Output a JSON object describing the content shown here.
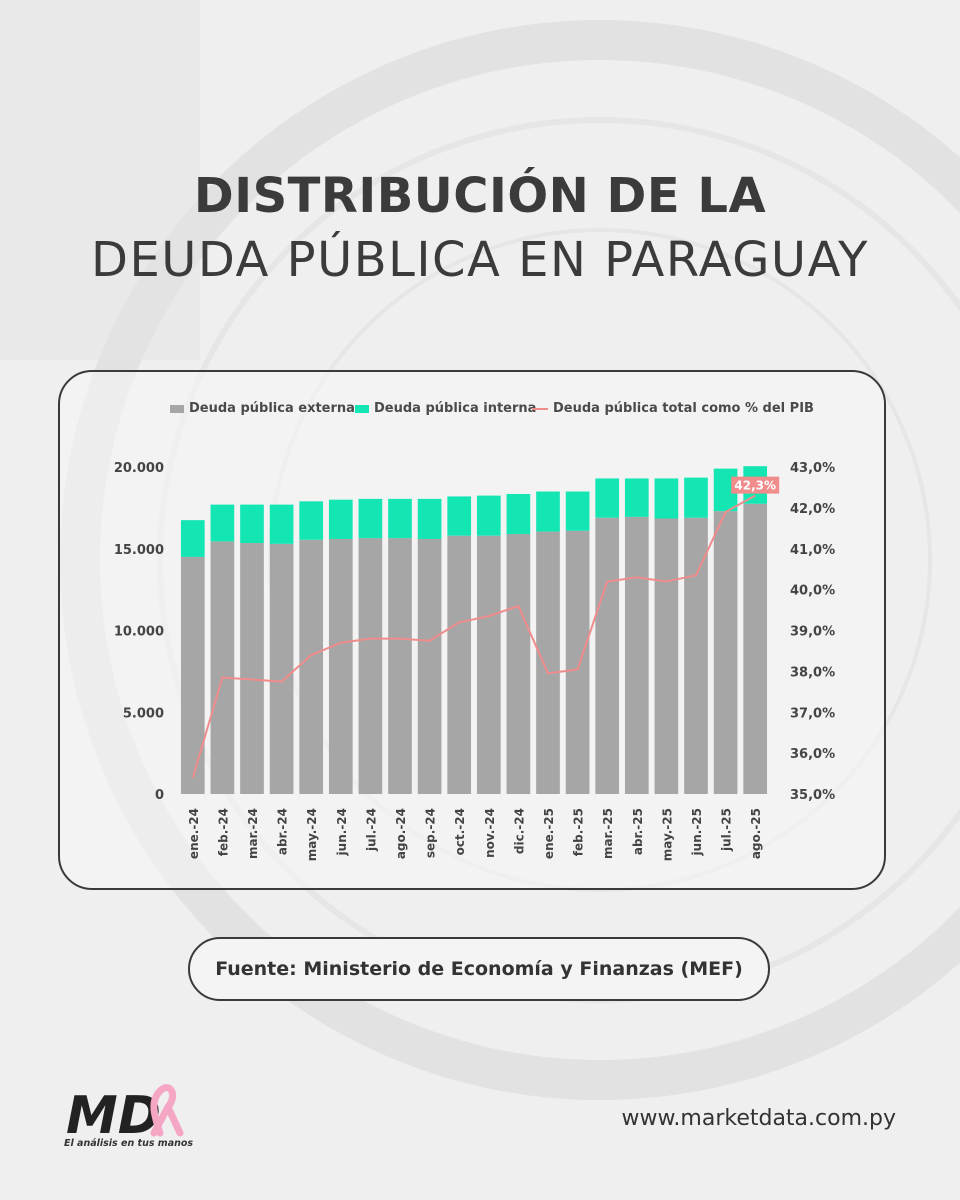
{
  "header": {
    "title_line1": "DISTRIBUCIÓN DE LA",
    "title_line2": "DEUDA PÚBLICA EN PARAGUAY"
  },
  "legend": {
    "external": "Deuda pública externa",
    "internal": "Deuda pública interna",
    "pct_gdp": "Deuda pública total como % del PIB"
  },
  "colors": {
    "external": "#a6a6a6",
    "internal": "#13e6b3",
    "pct_line": "#f08c8c",
    "last_label_bg": "#f08c8c"
  },
  "chart_data": {
    "type": "bar",
    "stacked": true,
    "categories": [
      "ene.-24",
      "feb.-24",
      "mar.-24",
      "abr.-24",
      "may.-24",
      "jun.-24",
      "jul.-24",
      "ago.-24",
      "sep.-24",
      "oct.-24",
      "nov.-24",
      "dic.-24",
      "ene.-25",
      "feb.-25",
      "mar.-25",
      "abr.-25",
      "may.-25",
      "jun.-25",
      "jul.-25",
      "ago.-25"
    ],
    "series": [
      {
        "name": "Deuda pública externa",
        "axis": "left",
        "values": [
          14500,
          15450,
          15350,
          15300,
          15550,
          15600,
          15650,
          15650,
          15600,
          15800,
          15800,
          15900,
          16050,
          16100,
          16900,
          16950,
          16850,
          16900,
          17300,
          17750
        ]
      },
      {
        "name": "Deuda pública interna",
        "axis": "left",
        "values": [
          2250,
          2250,
          2350,
          2400,
          2350,
          2400,
          2400,
          2400,
          2450,
          2400,
          2450,
          2450,
          2450,
          2400,
          2400,
          2350,
          2450,
          2450,
          2600,
          2300
        ]
      },
      {
        "name": "Deuda pública total como % del PIB",
        "axis": "right",
        "type": "line",
        "values": [
          35.4,
          37.85,
          37.8,
          37.75,
          38.4,
          38.7,
          38.8,
          38.8,
          38.75,
          39.2,
          39.35,
          39.6,
          37.95,
          38.05,
          40.2,
          40.3,
          40.2,
          40.35,
          41.9,
          42.3
        ]
      }
    ],
    "last_point_label": "42,3%",
    "y_left": {
      "min": 0,
      "max": 20000,
      "ticks": [
        "0",
        "5.000",
        "10.000",
        "15.000",
        "20.000"
      ]
    },
    "y_right": {
      "min": 35,
      "max": 43,
      "ticks": [
        "35,0%",
        "36,0%",
        "37,0%",
        "38,0%",
        "39,0%",
        "40,0%",
        "41,0%",
        "42,0%",
        "43,0%"
      ]
    },
    "grid": false,
    "legend_position": "top"
  },
  "footer": {
    "source": "Fuente: Ministerio de Economía y Finanzas (MEF)",
    "tagline": "El análisis en tus manos",
    "website": "www.marketdata.com.py",
    "logo_text": "MD"
  }
}
